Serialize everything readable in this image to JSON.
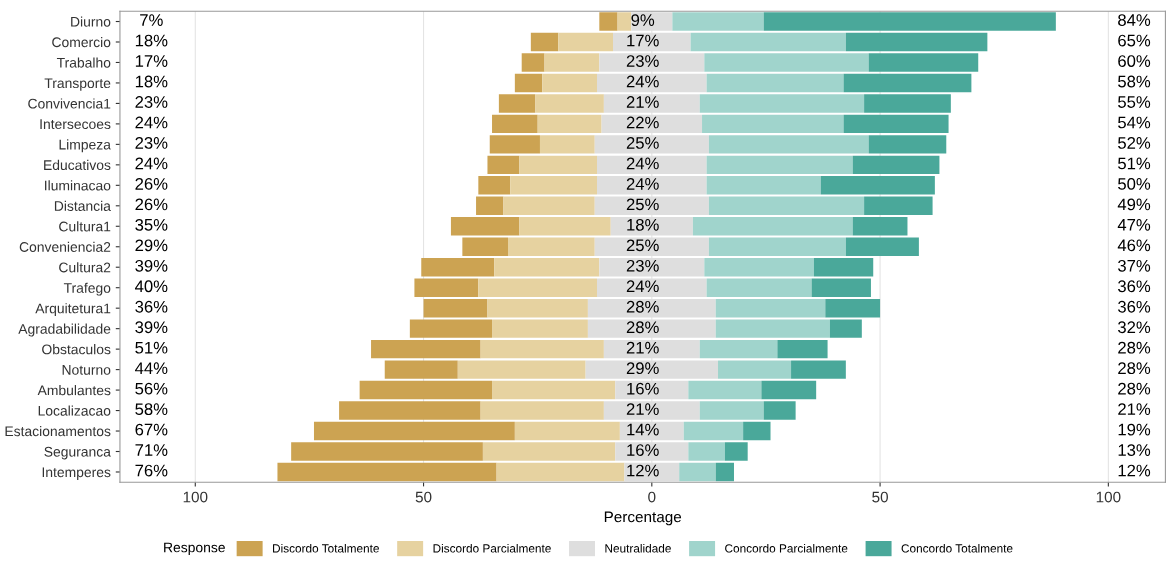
{
  "chart_data": {
    "type": "bar",
    "orientation": "horizontal",
    "xlabel": "Percentage",
    "legend_title": "Response",
    "legend": "bottom",
    "grid": "x",
    "categories": [
      "Diurno",
      "Comercio",
      "Trabalho",
      "Transporte",
      "Convivencia1",
      "Intersecoes",
      "Limpeza",
      "Educativos",
      "Iluminacao",
      "Distancia",
      "Cultura1",
      "Conveniencia2",
      "Cultura2",
      "Trafego",
      "Arquitetura1",
      "Agradabilidade",
      "Obstaculos",
      "Noturno",
      "Ambulantes",
      "Localizacao",
      "Estacionamentos",
      "Seguranca",
      "Intemperes"
    ],
    "series": [
      {
        "name": "Discordo Totalmente",
        "color": "#cca352",
        "values": [
          4,
          6,
          5,
          6,
          8,
          10,
          11,
          7,
          7,
          6,
          15,
          10,
          16,
          14,
          14,
          18,
          24,
          16,
          29,
          31,
          44,
          42,
          48
        ],
        "base": [
          -11.5,
          -26.5,
          -28.5,
          -30,
          -33.5,
          -35,
          -35.5,
          -36,
          -38,
          -38.5,
          -44,
          -41.5,
          -50.5,
          -52,
          -50,
          -53,
          -61.5,
          -58.5,
          -64,
          -68.5,
          -74,
          -79,
          -82
        ]
      },
      {
        "name": "Discordo Parcialmente",
        "color": "#e6d2a0",
        "values": [
          3,
          12,
          12,
          12,
          15,
          14,
          12,
          17,
          19,
          20,
          20,
          19,
          23,
          26,
          22,
          21,
          27,
          28,
          27,
          27,
          23,
          29,
          28
        ],
        "base": [
          -7.5,
          -20.5,
          -23.5,
          -24,
          -25.5,
          -25,
          -24.5,
          -29,
          -31,
          -32.5,
          -29,
          -31.5,
          -34.5,
          -38,
          -36,
          -35,
          -37.5,
          -42.5,
          -35,
          -37.5,
          -30,
          -37,
          -34
        ]
      },
      {
        "name": "Neutralidade",
        "color": "#dedede",
        "values": [
          9,
          17,
          23,
          24,
          21,
          22,
          25,
          24,
          24,
          25,
          18,
          25,
          23,
          24,
          28,
          28,
          21,
          29,
          16,
          21,
          14,
          16,
          12
        ],
        "base": [
          -4.5,
          -8.5,
          -11.5,
          -12,
          -10.5,
          -11,
          -12.5,
          -12,
          -12,
          -12.5,
          -9,
          -12.5,
          -11.5,
          -12,
          -14,
          -14,
          -10.5,
          -14.5,
          -8,
          -10.5,
          -7,
          -8,
          -6
        ]
      },
      {
        "name": "Concordo Parcialmente",
        "color": "#a0d4cc",
        "values": [
          20,
          34,
          36,
          30,
          36,
          31,
          35,
          32,
          25,
          34,
          35,
          30,
          24,
          23,
          24,
          25,
          17,
          16,
          16,
          14,
          13,
          8,
          8
        ],
        "base": [
          4.5,
          8.5,
          11.5,
          12,
          10.5,
          11,
          12.5,
          12,
          12,
          12.5,
          9,
          12.5,
          11.5,
          12,
          14,
          14,
          10.5,
          14.5,
          8,
          10.5,
          7,
          8,
          6
        ]
      },
      {
        "name": "Concordo Totalmente",
        "color": "#4aa89a",
        "values": [
          64,
          31,
          24,
          28,
          19,
          23,
          17,
          19,
          25,
          15,
          12,
          16,
          13,
          13,
          12,
          7,
          11,
          12,
          12,
          7,
          6,
          5,
          4
        ],
        "base": [
          24.5,
          42.5,
          47.5,
          42,
          46.5,
          42,
          47.5,
          44,
          37,
          46.5,
          44,
          42.5,
          35.5,
          35,
          38,
          39,
          27.5,
          30.5,
          24,
          24.5,
          20,
          16,
          14
        ]
      }
    ],
    "xlim": [
      -116.5,
      112.5
    ],
    "xticks": [
      {
        "value": -100,
        "label": "100"
      },
      {
        "value": -50,
        "label": "50"
      },
      0,
      50,
      100
    ],
    "annotations": [
      "7%",
      "9%",
      "84%",
      "18%",
      "17%",
      "65%",
      "17%",
      "23%",
      "60%",
      "18%",
      "24%",
      "58%",
      "23%",
      "21%",
      "55%",
      "24%",
      "22%",
      "54%",
      "23%",
      "25%",
      "52%",
      "24%",
      "24%",
      "51%",
      "26%",
      "24%",
      "50%",
      "26%",
      "25%",
      "49%",
      "35%",
      "18%",
      "47%",
      "29%",
      "25%",
      "46%",
      "39%",
      "23%",
      "37%",
      "40%",
      "24%",
      "36%",
      "36%",
      "28%",
      "36%",
      "39%",
      "28%",
      "32%",
      "51%",
      "21%",
      "28%",
      "44%",
      "29%",
      "28%",
      "56%",
      "16%",
      "28%",
      "58%",
      "21%",
      "21%",
      "67%",
      "14%",
      "19%",
      "71%",
      "16%",
      "13%",
      "76%",
      "12%",
      "12%"
    ]
  }
}
